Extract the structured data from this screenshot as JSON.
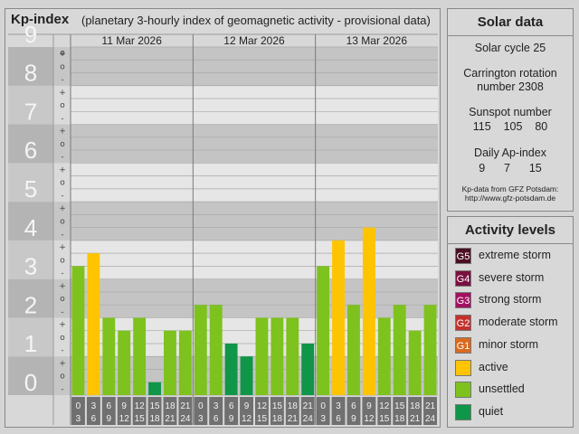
{
  "header": {
    "title": "Kp-index",
    "subtitle": "(planetary 3-hourly index of geomagnetic activity - provisional data)"
  },
  "solar": {
    "title": "Solar data",
    "cycle": "Solar cycle 25",
    "carrington_line1": "Carrington rotation",
    "carrington_line2": "number 2308",
    "sunspot_label": "Sunspot number",
    "sunspot_values": "115    105    80",
    "ap_label": "Daily Ap-index",
    "ap_values": "9      7      15",
    "source_line1": "Kp-data from GFZ Potsdam:",
    "source_line2": "http://www.gfz-potsdam.de"
  },
  "activity": {
    "title": "Activity levels",
    "levels": [
      {
        "code": "G5",
        "label": "extreme storm",
        "color": "#4b0f24"
      },
      {
        "code": "G4",
        "label": "severe storm",
        "color": "#7a1040"
      },
      {
        "code": "G3",
        "label": "strong storm",
        "color": "#a31060"
      },
      {
        "code": "G2",
        "label": "moderate storm",
        "color": "#c4312c"
      },
      {
        "code": "G1",
        "label": "minor storm",
        "color": "#d96a20"
      },
      {
        "code": "",
        "label": "active",
        "color": "#ffc400"
      },
      {
        "code": "",
        "label": "unsettled",
        "color": "#7ec21e"
      },
      {
        "code": "",
        "label": "quiet",
        "color": "#0f9648"
      }
    ]
  },
  "chart_data": {
    "type": "bar",
    "ylim": [
      0,
      9
    ],
    "yticks": [
      "0",
      "1",
      "2",
      "3",
      "4",
      "5",
      "6",
      "7",
      "8",
      "9"
    ],
    "minor_tick_labels": [
      "+",
      "o",
      "-"
    ],
    "days": [
      "11 Mar 2026",
      "12 Mar 2026",
      "13 Mar 2026"
    ],
    "interval_start_labels": [
      "0",
      "3",
      "6",
      "9",
      "12",
      "15",
      "18",
      "21"
    ],
    "interval_end_labels": [
      "3",
      "6",
      "9",
      "12",
      "15",
      "18",
      "21",
      "24"
    ],
    "values": [
      3.333,
      3.667,
      2.0,
      1.667,
      2.0,
      0.333,
      1.667,
      1.667,
      2.333,
      2.333,
      1.333,
      1.0,
      2.0,
      2.0,
      2.0,
      1.333,
      3.333,
      4.0,
      2.333,
      4.333,
      2.0,
      2.333,
      1.667,
      2.333
    ],
    "colors": {
      "quiet": "#0f9648",
      "unsettled": "#7ec21e",
      "active": "#ffc400"
    }
  }
}
